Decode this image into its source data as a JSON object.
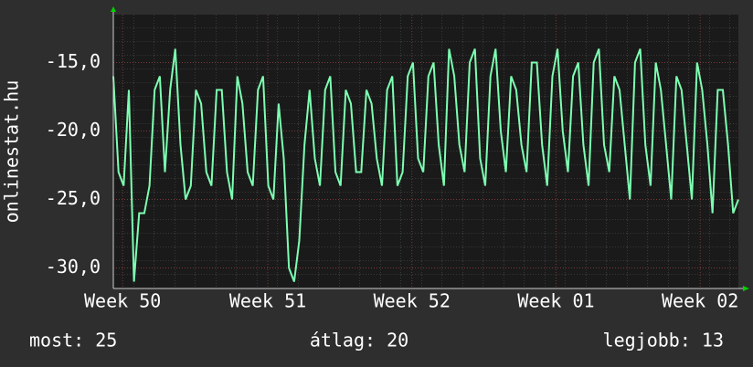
{
  "chart_data": {
    "type": "line",
    "y_label": "onlinestat.hu",
    "values": [
      -16,
      -23,
      -24,
      -17,
      -31,
      -26,
      -26,
      -24,
      -17,
      -16,
      -23,
      -17,
      -14,
      -21,
      -25,
      -24,
      -17,
      -18,
      -23,
      -24,
      -17,
      -17,
      -23,
      -25,
      -16,
      -18,
      -23,
      -24,
      -17,
      -16,
      -24,
      -25,
      -18,
      -22,
      -30,
      -31,
      -28,
      -21,
      -17,
      -22,
      -24,
      -17,
      -16,
      -23,
      -24,
      -17,
      -18,
      -23,
      -23,
      -17,
      -18,
      -22,
      -24,
      -17,
      -16,
      -24,
      -23,
      -16,
      -15,
      -22,
      -23,
      -16,
      -15,
      -21,
      -24,
      -14,
      -16,
      -21,
      -23,
      -15,
      -14,
      -22,
      -24,
      -16,
      -14,
      -20,
      -23,
      -16,
      -17,
      -21,
      -23,
      -15,
      -15,
      -21,
      -24,
      -16,
      -14,
      -20,
      -23,
      -16,
      -15,
      -21,
      -24,
      -15,
      -14,
      -21,
      -23,
      -16,
      -17,
      -21,
      -25,
      -15,
      -14,
      -21,
      -24,
      -15,
      -17,
      -21,
      -25,
      -16,
      -17,
      -21,
      -25,
      -15,
      -17,
      -21,
      -26,
      -17,
      -17,
      -21,
      -26,
      -25
    ],
    "color": "#7dffb2",
    "xlim": [
      0,
      121
    ],
    "xticks": [
      {
        "value": 1.8,
        "label": "Week 50"
      },
      {
        "value": 29.9,
        "label": "Week 51"
      },
      {
        "value": 57.8,
        "label": "Week 52"
      },
      {
        "value": 85.7,
        "label": "Week 01"
      },
      {
        "value": 113.6,
        "label": "Week 02"
      }
    ],
    "ylim": [
      -31.5,
      -11.5
    ],
    "yticks": [
      {
        "value": -15,
        "label": "-15,0"
      },
      {
        "value": -20,
        "label": "-20,0"
      },
      {
        "value": -25,
        "label": "-25,0"
      },
      {
        "value": -30,
        "label": "-30,0"
      }
    ],
    "grid": true,
    "footer": [
      "most: 25",
      "átlag: 20",
      "legjobb: 13"
    ]
  }
}
